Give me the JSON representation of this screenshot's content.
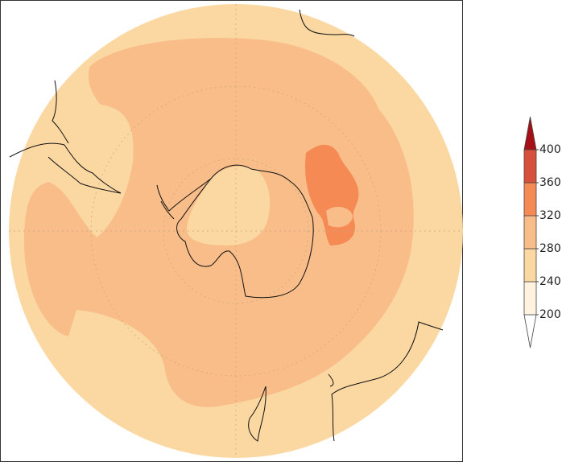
{
  "colorbar": {
    "ticks": [
      200,
      240,
      280,
      320,
      360,
      400
    ],
    "colors": [
      "#fff3df",
      "#fbd7a1",
      "#f8bd89",
      "#f58a55",
      "#d6503b"
    ],
    "under_color": "#ffffff",
    "over_color": "#a50f15"
  }
}
